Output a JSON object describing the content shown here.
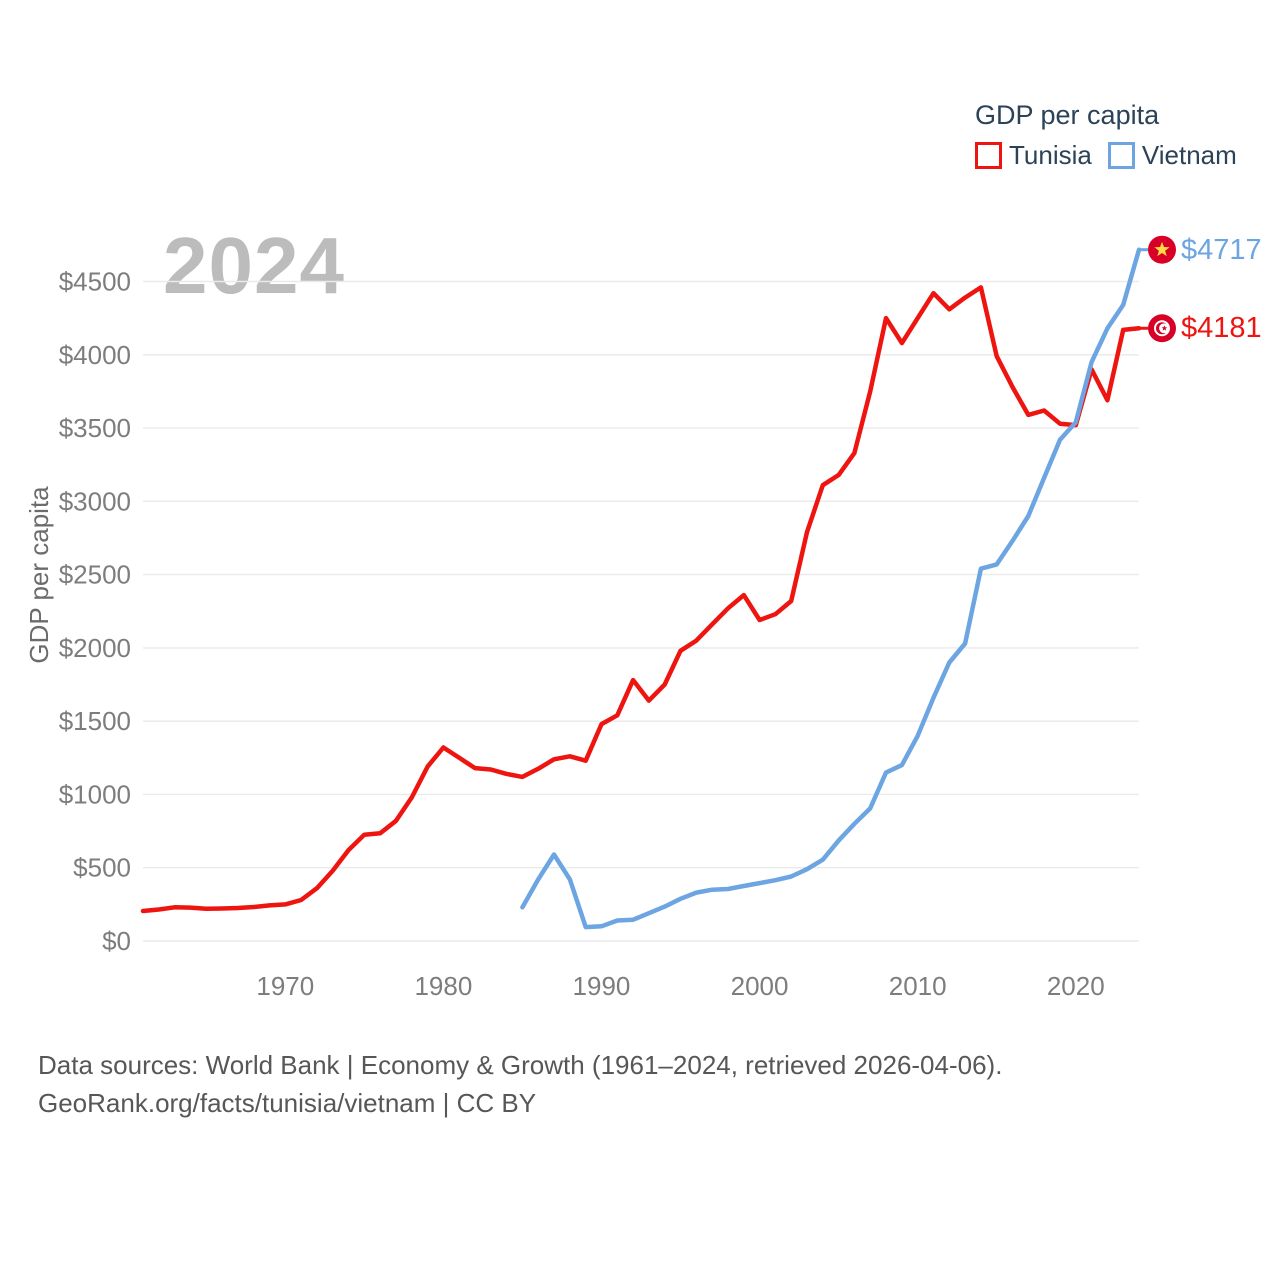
{
  "chart_data": {
    "type": "line",
    "title": "GDP per capita",
    "watermark": "2024",
    "y_axis_label": "GDP per capita",
    "x_range": [
      1961,
      2024
    ],
    "y_range": [
      0,
      4500
    ],
    "grid": "horizontal",
    "legend_position": "top-right",
    "y_ticks": [
      {
        "value": 0,
        "label": "$0"
      },
      {
        "value": 500,
        "label": "$500"
      },
      {
        "value": 1000,
        "label": "$1000"
      },
      {
        "value": 1500,
        "label": "$1500"
      },
      {
        "value": 2000,
        "label": "$2000"
      },
      {
        "value": 2500,
        "label": "$2500"
      },
      {
        "value": 3000,
        "label": "$3000"
      },
      {
        "value": 3500,
        "label": "$3500"
      },
      {
        "value": 4000,
        "label": "$4000"
      },
      {
        "value": 4500,
        "label": "$4500"
      }
    ],
    "x_ticks": [
      {
        "value": 1970,
        "label": "1970"
      },
      {
        "value": 1980,
        "label": "1980"
      },
      {
        "value": 1990,
        "label": "1990"
      },
      {
        "value": 2000,
        "label": "2000"
      },
      {
        "value": 2010,
        "label": "2010"
      },
      {
        "value": 2020,
        "label": "2020"
      }
    ],
    "series": [
      {
        "name": "Tunisia",
        "color": "#ee1511",
        "flag": "tunisia",
        "start_year": 1961,
        "end_year": 2024,
        "end_label": "$4181",
        "end_value": 4181,
        "values": [
          205,
          215,
          230,
          228,
          220,
          222,
          225,
          232,
          243,
          250,
          280,
          360,
          480,
          620,
          725,
          735,
          820,
          980,
          1190,
          1320,
          1250,
          1180,
          1170,
          1140,
          1120,
          1175,
          1240,
          1260,
          1230,
          1480,
          1540,
          1780,
          1640,
          1750,
          1980,
          2050,
          2160,
          2270,
          2360,
          2190,
          2230,
          2320,
          2790,
          3110,
          3180,
          3330,
          3750,
          4250,
          4080,
          4250,
          4420,
          4310,
          4390,
          4460,
          3990,
          3780,
          3590,
          3620,
          3530,
          3520,
          3900,
          3690,
          4170,
          4181
        ]
      },
      {
        "name": "Vietnam",
        "color": "#6ca5e2",
        "flag": "vietnam",
        "start_year": 1985,
        "end_year": 2024,
        "end_label": "$4717",
        "end_value": 4717,
        "values": [
          230,
          420,
          590,
          420,
          95,
          100,
          140,
          145,
          190,
          235,
          288,
          330,
          350,
          355,
          375,
          395,
          415,
          440,
          490,
          555,
          685,
          800,
          905,
          1150,
          1200,
          1400,
          1660,
          1900,
          2030,
          2540,
          2570,
          2730,
          2900,
          3160,
          3420,
          3540,
          3950,
          4180,
          4340,
          4717
        ]
      }
    ],
    "flag_colors": {
      "flag_red": "#d80027",
      "flag_yellow": "#ffda44",
      "flag_white": "#ffffff"
    },
    "style_colors": {
      "grid": "#eaeaea",
      "tick_text": "#7d7d7d",
      "axis_title": "#6b6b6b",
      "legend_text": "#2b4257",
      "watermark": "#bcbcbc",
      "footer_text": "#575757"
    }
  },
  "footer": {
    "line1": "Data sources: World Bank | Economy & Growth (1961–2024, retrieved 2026-04-06).",
    "line2": "GeoRank.org/facts/tunisia/vietnam | CC BY"
  }
}
